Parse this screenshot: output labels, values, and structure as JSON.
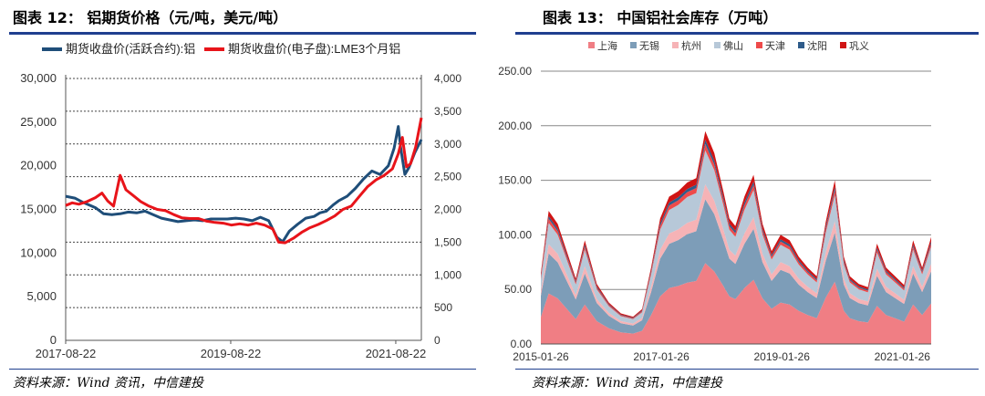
{
  "left": {
    "title": "图表 12： 铝期货价格（元/吨，美元/吨）",
    "source": "资料来源：Wind 资讯，中信建投",
    "chart_data": {
      "type": "line",
      "legend": [
        "期货收盘价(活跃合约):铝",
        "期货收盘价(电子盘):LME3个月铝"
      ],
      "colors": {
        "shfe": "#1f4e79",
        "lme": "#e8141a"
      },
      "y_left": {
        "min": 0,
        "max": 30000,
        "ticks": [
          "0",
          "5,000",
          "10,000",
          "15,000",
          "20,000",
          "25,000",
          "30,000"
        ]
      },
      "y_right": {
        "min": 0,
        "max": 4000,
        "ticks": [
          "0",
          "500",
          "1,000",
          "1,500",
          "2,000",
          "2,500",
          "3,000",
          "3,500",
          "4,000"
        ]
      },
      "x_ticks": [
        "2017-08-22",
        "2019-08-22",
        "2021-08-22"
      ],
      "x_range": [
        2017.64,
        2021.95
      ],
      "series": [
        {
          "name": "期货收盘价(活跃合约):铝",
          "axis": "left",
          "points": [
            [
              2017.64,
              16500
            ],
            [
              2017.75,
              16300
            ],
            [
              2017.85,
              15800
            ],
            [
              2018.0,
              15200
            ],
            [
              2018.1,
              14500
            ],
            [
              2018.2,
              14400
            ],
            [
              2018.3,
              14500
            ],
            [
              2018.4,
              14700
            ],
            [
              2018.5,
              14600
            ],
            [
              2018.6,
              14800
            ],
            [
              2018.7,
              14400
            ],
            [
              2018.8,
              14000
            ],
            [
              2018.9,
              13800
            ],
            [
              2019.0,
              13600
            ],
            [
              2019.1,
              13700
            ],
            [
              2019.2,
              13800
            ],
            [
              2019.3,
              13700
            ],
            [
              2019.4,
              13900
            ],
            [
              2019.5,
              13900
            ],
            [
              2019.6,
              13900
            ],
            [
              2019.7,
              14000
            ],
            [
              2019.8,
              13900
            ],
            [
              2019.9,
              13700
            ],
            [
              2020.0,
              14100
            ],
            [
              2020.1,
              13700
            ],
            [
              2020.2,
              11800
            ],
            [
              2020.27,
              11300
            ],
            [
              2020.35,
              12500
            ],
            [
              2020.45,
              13300
            ],
            [
              2020.55,
              14000
            ],
            [
              2020.65,
              14200
            ],
            [
              2020.72,
              14600
            ],
            [
              2020.8,
              14800
            ],
            [
              2020.88,
              15500
            ],
            [
              2020.95,
              16000
            ],
            [
              2021.05,
              16500
            ],
            [
              2021.15,
              17400
            ],
            [
              2021.25,
              18500
            ],
            [
              2021.35,
              19400
            ],
            [
              2021.45,
              19000
            ],
            [
              2021.55,
              20000
            ],
            [
              2021.62,
              22000
            ],
            [
              2021.67,
              24500
            ],
            [
              2021.7,
              22000
            ],
            [
              2021.75,
              19000
            ],
            [
              2021.8,
              19800
            ],
            [
              2021.87,
              21500
            ],
            [
              2021.95,
              23000
            ]
          ]
        },
        {
          "name": "期货收盘价(电子盘):LME3个月铝",
          "axis": "right",
          "points": [
            [
              2017.64,
              2060
            ],
            [
              2017.72,
              2100
            ],
            [
              2017.8,
              2080
            ],
            [
              2017.9,
              2120
            ],
            [
              2018.0,
              2180
            ],
            [
              2018.08,
              2250
            ],
            [
              2018.15,
              2130
            ],
            [
              2018.22,
              2050
            ],
            [
              2018.3,
              2520
            ],
            [
              2018.37,
              2300
            ],
            [
              2018.45,
              2220
            ],
            [
              2018.55,
              2120
            ],
            [
              2018.65,
              2050
            ],
            [
              2018.75,
              2000
            ],
            [
              2018.85,
              1980
            ],
            [
              2018.95,
              1920
            ],
            [
              2019.05,
              1870
            ],
            [
              2019.15,
              1860
            ],
            [
              2019.25,
              1860
            ],
            [
              2019.35,
              1820
            ],
            [
              2019.45,
              1800
            ],
            [
              2019.55,
              1790
            ],
            [
              2019.65,
              1760
            ],
            [
              2019.75,
              1780
            ],
            [
              2019.85,
              1760
            ],
            [
              2019.95,
              1790
            ],
            [
              2020.05,
              1760
            ],
            [
              2020.15,
              1700
            ],
            [
              2020.22,
              1500
            ],
            [
              2020.3,
              1490
            ],
            [
              2020.4,
              1560
            ],
            [
              2020.5,
              1650
            ],
            [
              2020.6,
              1720
            ],
            [
              2020.7,
              1770
            ],
            [
              2020.8,
              1830
            ],
            [
              2020.9,
              1900
            ],
            [
              2021.0,
              2000
            ],
            [
              2021.1,
              2050
            ],
            [
              2021.2,
              2200
            ],
            [
              2021.3,
              2350
            ],
            [
              2021.4,
              2450
            ],
            [
              2021.5,
              2520
            ],
            [
              2021.6,
              2620
            ],
            [
              2021.67,
              2850
            ],
            [
              2021.72,
              3100
            ],
            [
              2021.77,
              2650
            ],
            [
              2021.82,
              2700
            ],
            [
              2021.88,
              2950
            ],
            [
              2021.95,
              3400
            ]
          ]
        }
      ]
    }
  },
  "right": {
    "title": "图表 13： 中国铝社会库存（万吨）",
    "source": "资料来源：Wind 资讯，中信建投",
    "chart_data": {
      "type": "area",
      "stacked": true,
      "legend": [
        "上海",
        "无锡",
        "杭州",
        "佛山",
        "天津",
        "沈阳",
        "巩义"
      ],
      "colors": [
        "#f07e84",
        "#7d9db8",
        "#f6b3b6",
        "#b7c8d8",
        "#ee4a4a",
        "#2e5b8a",
        "#d01414"
      ],
      "y": {
        "min": 0,
        "max": 250,
        "ticks": [
          "0.00",
          "50.00",
          "100.00",
          "150.00",
          "200.00",
          "250.00"
        ]
      },
      "x_ticks": [
        "2015-01-26",
        "2017-01-26",
        "2019-01-26",
        "2021-01-26"
      ],
      "x_range": [
        2015.07,
        2021.55
      ],
      "x": [
        2015.07,
        2015.2,
        2015.35,
        2015.5,
        2015.65,
        2015.8,
        2016.0,
        2016.2,
        2016.4,
        2016.6,
        2016.75,
        2016.9,
        2017.05,
        2017.2,
        2017.35,
        2017.5,
        2017.65,
        2017.8,
        2017.95,
        2018.1,
        2018.2,
        2018.3,
        2018.45,
        2018.6,
        2018.75,
        2018.9,
        2019.05,
        2019.2,
        2019.35,
        2019.5,
        2019.65,
        2019.8,
        2019.95,
        2020.1,
        2020.2,
        2020.35,
        2020.5,
        2020.65,
        2020.8,
        2020.95,
        2021.1,
        2021.25,
        2021.4,
        2021.55
      ],
      "totals": [
        65,
        122,
        110,
        85,
        60,
        95,
        55,
        38,
        28,
        25,
        32,
        70,
        115,
        135,
        140,
        148,
        152,
        195,
        175,
        140,
        115,
        108,
        135,
        155,
        110,
        85,
        100,
        95,
        80,
        70,
        62,
        112,
        150,
        80,
        62,
        55,
        52,
        92,
        70,
        62,
        54,
        95,
        70,
        98
      ],
      "shares": [
        0.38,
        0.3,
        0.07,
        0.16,
        0.03,
        0.02,
        0.04
      ]
    }
  }
}
